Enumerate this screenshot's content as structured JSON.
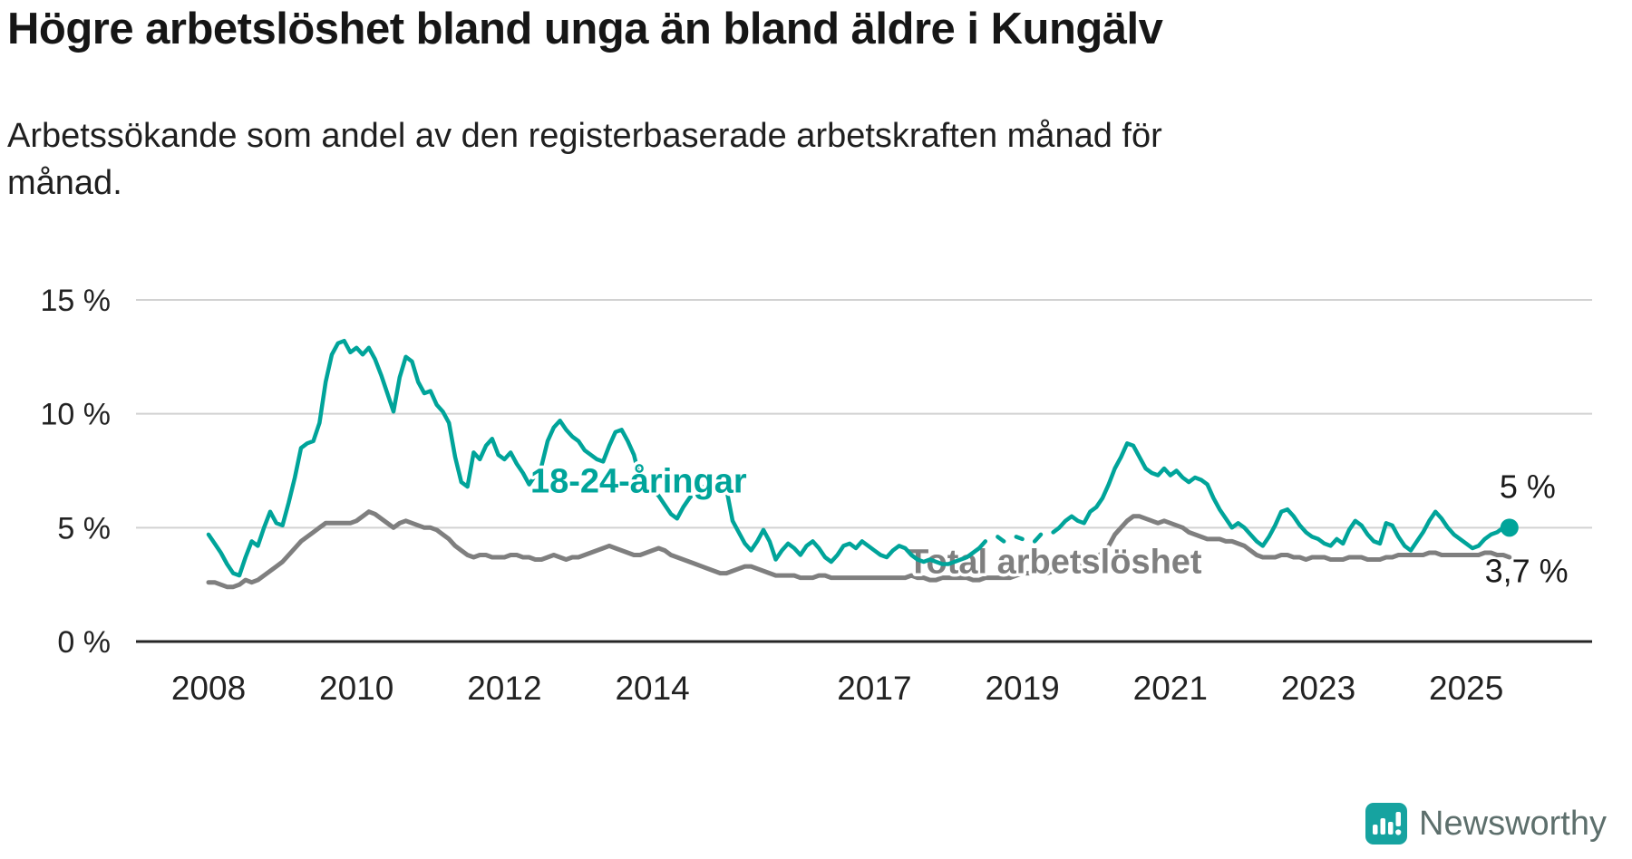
{
  "title": "Högre arbetslöshet bland unga än bland äldre i Kungälv",
  "subtitle": "Arbetssökande som andel av den registerbaserade arbetskraften månad för månad.",
  "branding": {
    "logo_text": "Newsworthy",
    "logo_color": "#16a3a0",
    "text_color": "#5d6f6c"
  },
  "chart_data": {
    "type": "line",
    "title": "Högre arbetslöshet bland unga än bland äldre i Kungälv",
    "subtitle": "Arbetssökande som andel av den registerbaserade arbetskraften månad för månad.",
    "unit": "%",
    "x_start": 2008.0,
    "x_end": 2025.583,
    "x_interval": "monthly",
    "x_ticks": [
      2008,
      2010,
      2012,
      2014,
      2017,
      2019,
      2021,
      2023,
      2025
    ],
    "y_ticks": [
      0,
      5,
      10,
      15
    ],
    "y_tick_labels": [
      "0 %",
      "5 %",
      "10 %",
      "15 %"
    ],
    "ylim": [
      0,
      15.5
    ],
    "xlim": [
      2007.0,
      2026.7
    ],
    "grid": "horizontal",
    "legend_position": "inline-labels",
    "annotations": [
      {
        "text": "5 %",
        "x": 2025.45,
        "y": 6.3,
        "color": "#1a1a1a"
      },
      {
        "text": "3,7 %",
        "x": 2025.25,
        "y": 2.6,
        "color": "#1a1a1a"
      }
    ],
    "series": [
      {
        "id": "total",
        "name": "Total arbetslöshet",
        "color": "#7f7f7f",
        "line_width": 5,
        "end_dot": false,
        "end_value_label": "3,7 %",
        "label_pos": {
          "x": 2017.45,
          "y": 3.0
        },
        "values": [
          2.6,
          2.6,
          2.5,
          2.4,
          2.4,
          2.5,
          2.7,
          2.6,
          2.7,
          2.9,
          3.1,
          3.3,
          3.5,
          3.8,
          4.1,
          4.4,
          4.6,
          4.8,
          5.0,
          5.2,
          5.2,
          5.2,
          5.2,
          5.2,
          5.3,
          5.5,
          5.7,
          5.6,
          5.4,
          5.2,
          5.0,
          5.2,
          5.3,
          5.2,
          5.1,
          5.0,
          5.0,
          4.9,
          4.7,
          4.5,
          4.2,
          4.0,
          3.8,
          3.7,
          3.8,
          3.8,
          3.7,
          3.7,
          3.7,
          3.8,
          3.8,
          3.7,
          3.7,
          3.6,
          3.6,
          3.7,
          3.8,
          3.7,
          3.6,
          3.7,
          3.7,
          3.8,
          3.9,
          4.0,
          4.1,
          4.2,
          4.1,
          4.0,
          3.9,
          3.8,
          3.8,
          3.9,
          4.0,
          4.1,
          4.0,
          3.8,
          3.7,
          3.6,
          3.5,
          3.4,
          3.3,
          3.2,
          3.1,
          3.0,
          3.0,
          3.1,
          3.2,
          3.3,
          3.3,
          3.2,
          3.1,
          3.0,
          2.9,
          2.9,
          2.9,
          2.9,
          2.8,
          2.8,
          2.8,
          2.9,
          2.9,
          2.8,
          2.8,
          2.8,
          2.8,
          2.8,
          2.8,
          2.8,
          2.8,
          2.8,
          2.8,
          2.8,
          2.8,
          2.8,
          2.9,
          2.8,
          2.8,
          2.7,
          2.7,
          2.8,
          2.8,
          2.8,
          2.8,
          2.8,
          2.7,
          2.7,
          2.8,
          2.8,
          2.8,
          2.8,
          2.8,
          2.9,
          3.0,
          3.0,
          3.0,
          3.0,
          3.0,
          3.1,
          3.2,
          3.3,
          3.3,
          3.4,
          3.5,
          3.6,
          3.7,
          3.9,
          4.2,
          4.7,
          5.0,
          5.3,
          5.5,
          5.5,
          5.4,
          5.3,
          5.2,
          5.3,
          5.2,
          5.1,
          5.0,
          4.8,
          4.7,
          4.6,
          4.5,
          4.5,
          4.5,
          4.4,
          4.4,
          4.3,
          4.2,
          4.0,
          3.8,
          3.7,
          3.7,
          3.7,
          3.8,
          3.8,
          3.7,
          3.7,
          3.6,
          3.7,
          3.7,
          3.7,
          3.6,
          3.6,
          3.6,
          3.7,
          3.7,
          3.7,
          3.6,
          3.6,
          3.6,
          3.7,
          3.7,
          3.8,
          3.8,
          3.8,
          3.8,
          3.8,
          3.9,
          3.9,
          3.8,
          3.8,
          3.8,
          3.8,
          3.8,
          3.8,
          3.8,
          3.9,
          3.9,
          3.8,
          3.8,
          3.7
        ]
      },
      {
        "id": "youth",
        "name": "18-24-åringar",
        "color": "#00a49a",
        "line_width": 4.5,
        "end_dot": true,
        "end_value_label": "5 %",
        "label_pos": {
          "x": 2012.35,
          "y": 6.55
        },
        "values": [
          4.7,
          4.3,
          3.9,
          3.4,
          3.0,
          2.9,
          3.7,
          4.4,
          4.2,
          5.0,
          5.7,
          5.2,
          5.1,
          6.1,
          7.2,
          8.5,
          8.7,
          8.8,
          9.6,
          11.4,
          12.6,
          13.1,
          13.2,
          12.7,
          12.9,
          12.6,
          12.9,
          12.4,
          11.7,
          10.9,
          10.1,
          11.6,
          12.5,
          12.3,
          11.4,
          10.9,
          11.0,
          10.4,
          10.1,
          9.6,
          8.1,
          7.0,
          6.8,
          8.3,
          8.0,
          8.6,
          8.9,
          8.2,
          8.0,
          8.3,
          7.8,
          7.4,
          6.9,
          7.3,
          7.7,
          8.8,
          9.4,
          9.7,
          9.3,
          9.0,
          8.8,
          8.4,
          8.2,
          8.0,
          7.9,
          8.6,
          9.2,
          9.3,
          8.8,
          8.2,
          7.1,
          6.8,
          6.7,
          6.4,
          6.0,
          5.6,
          5.4,
          5.9,
          6.3,
          6.6,
          6.8,
          6.7,
          6.6,
          6.8,
          6.7,
          5.3,
          4.8,
          4.3,
          4.0,
          4.4,
          4.9,
          4.4,
          3.6,
          4.0,
          4.3,
          4.1,
          3.8,
          4.2,
          4.4,
          4.1,
          3.7,
          3.5,
          3.8,
          4.2,
          4.3,
          4.1,
          4.4,
          4.2,
          4.0,
          3.8,
          3.7,
          4.0,
          4.2,
          4.1,
          3.8,
          3.6,
          3.5,
          3.6,
          3.5,
          3.4,
          3.4,
          3.5,
          3.6,
          3.7,
          3.9,
          4.1,
          4.4,
          null,
          4.6,
          4.4,
          null,
          4.6,
          4.5,
          null,
          4.4,
          4.7,
          null,
          4.8,
          5.0,
          5.3,
          5.5,
          5.3,
          5.2,
          5.7,
          5.9,
          6.3,
          6.9,
          7.6,
          8.1,
          8.7,
          8.6,
          8.1,
          7.6,
          7.4,
          7.3,
          7.6,
          7.3,
          7.5,
          7.2,
          7.0,
          7.2,
          7.1,
          6.9,
          6.3,
          5.8,
          5.4,
          5.0,
          5.2,
          5.0,
          4.7,
          4.4,
          4.2,
          4.6,
          5.1,
          5.7,
          5.8,
          5.5,
          5.1,
          4.8,
          4.6,
          4.5,
          4.3,
          4.2,
          4.5,
          4.3,
          4.9,
          5.3,
          5.1,
          4.7,
          4.4,
          4.3,
          5.2,
          5.1,
          4.6,
          4.2,
          4.0,
          4.4,
          4.8,
          5.3,
          5.7,
          5.4,
          5.0,
          4.7,
          4.5,
          4.3,
          4.1,
          4.2,
          4.5,
          4.7,
          4.8,
          5.0,
          5.0
        ]
      }
    ]
  }
}
